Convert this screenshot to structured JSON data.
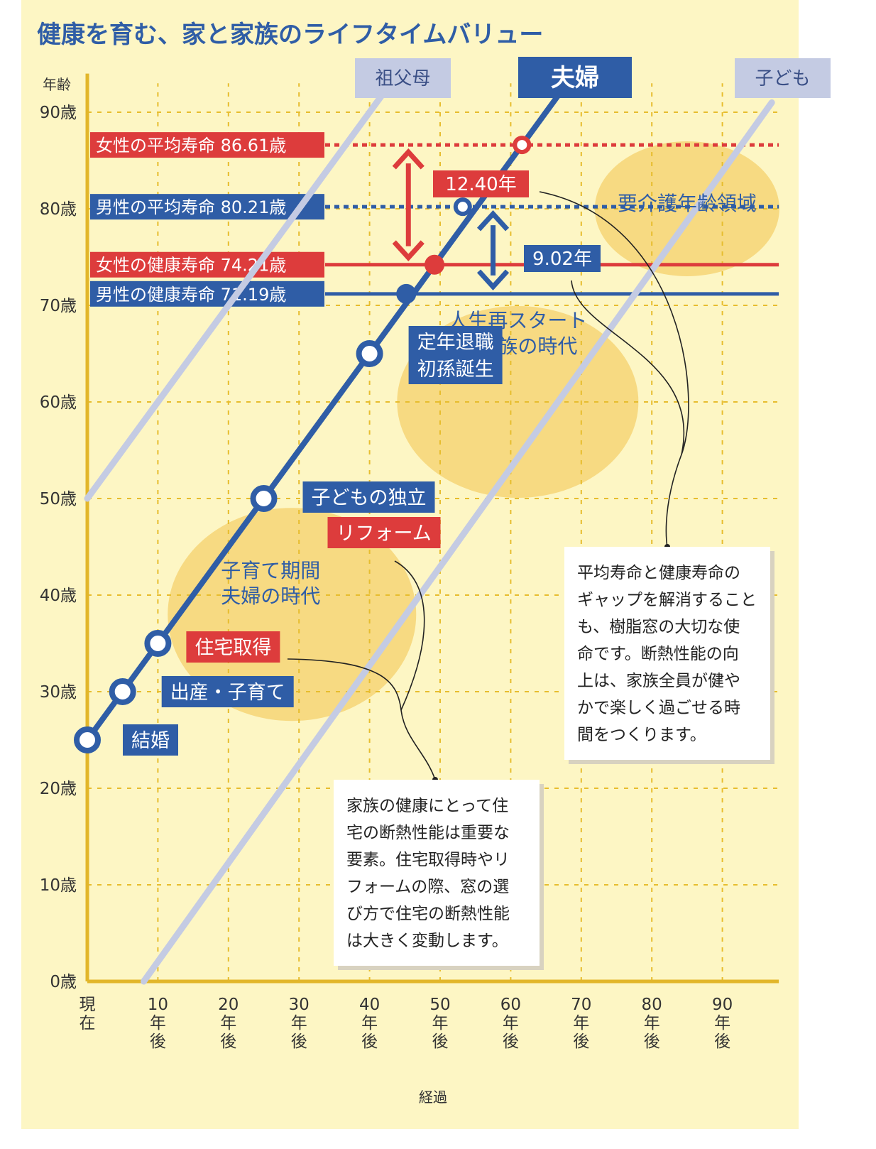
{
  "title": "健康を育む、家と家族のライフタイムバリュー",
  "colors": {
    "page_bg": "#fdf6c4",
    "axis": "#e2b62a",
    "grid": "#e7bd2e",
    "blue": "#2f5da6",
    "red": "#dd3c3c",
    "light_blue": "#c4cbe3",
    "bubble": "#f6d577",
    "title_blue": "#2f5da6"
  },
  "chart_data": {
    "type": "line",
    "xlabel": "経過",
    "ylabel": "年齢",
    "xlim": [
      0,
      98
    ],
    "ylim": [
      0,
      90
    ],
    "x_ticks": [
      {
        "value": 0,
        "label": "現\n在"
      },
      {
        "value": 10,
        "label": "10\n年\n後"
      },
      {
        "value": 20,
        "label": "20\n年\n後"
      },
      {
        "value": 30,
        "label": "30\n年\n後"
      },
      {
        "value": 40,
        "label": "40\n年\n後"
      },
      {
        "value": 50,
        "label": "50\n年\n後"
      },
      {
        "value": 60,
        "label": "60\n年\n後"
      },
      {
        "value": 70,
        "label": "70\n年\n後"
      },
      {
        "value": 80,
        "label": "80\n年\n後"
      },
      {
        "value": 90,
        "label": "90\n年\n後"
      }
    ],
    "y_ticks": [
      {
        "value": 0,
        "label": "0歳"
      },
      {
        "value": 10,
        "label": "10歳"
      },
      {
        "value": 20,
        "label": "20歳"
      },
      {
        "value": 30,
        "label": "30歳"
      },
      {
        "value": 40,
        "label": "40歳"
      },
      {
        "value": 50,
        "label": "50歳"
      },
      {
        "value": 60,
        "label": "60歳"
      },
      {
        "value": 70,
        "label": "70歳"
      },
      {
        "value": 80,
        "label": "80歳"
      },
      {
        "value": 90,
        "label": "90歳"
      }
    ],
    "grid": true,
    "series": [
      {
        "name": "祖父母",
        "x": [
          0,
          43
        ],
        "y": [
          50,
          93
        ],
        "style": "faded"
      },
      {
        "name": "夫婦",
        "x": [
          0,
          67
        ],
        "y": [
          25,
          92
        ],
        "style": "main"
      },
      {
        "name": "子ども",
        "x": [
          8,
          97
        ],
        "y": [
          0,
          91
        ],
        "style": "faded"
      }
    ],
    "milestones": [
      {
        "x": 0,
        "y": 25,
        "label": "結婚",
        "color": "blue"
      },
      {
        "x": 5,
        "y": 30,
        "label": "出産・子育て",
        "color": "blue"
      },
      {
        "x": 10,
        "y": 35,
        "label": "住宅取得",
        "color": "red"
      },
      {
        "x": 25,
        "y": 50,
        "label": "子どもの独立",
        "color": "blue"
      },
      {
        "x": 25,
        "y": 50,
        "label": "リフォーム",
        "color": "red"
      },
      {
        "x": 40,
        "y": 65,
        "label": "定年退職\n初孫誕生",
        "color": "blue"
      }
    ],
    "reference_lines": [
      {
        "label": "女性の平均寿命 86.61歳",
        "value": 86.61,
        "style": "dotted",
        "color": "red",
        "marker_x": 61.6
      },
      {
        "label": "男性の平均寿命 80.21歳",
        "value": 80.21,
        "style": "dotted",
        "color": "blue",
        "marker_x": 53.2
      },
      {
        "label": "女性の健康寿命 74.21歳",
        "value": 74.21,
        "style": "solid",
        "color": "red",
        "marker_x": 49.2
      },
      {
        "label": "男性の健康寿命 71.19歳",
        "value": 71.19,
        "style": "solid",
        "color": "blue",
        "marker_x": 45.2
      }
    ],
    "gaps": [
      {
        "label": "12.40年",
        "from": 74.21,
        "to": 86.61,
        "color": "red",
        "x": 45.5
      },
      {
        "label": "9.02年",
        "from": 71.19,
        "to": 80.21,
        "color": "blue",
        "x": 57.5
      }
    ],
    "regions": [
      {
        "label": "子育て期間\n夫婦の時代",
        "cx": 29,
        "cy": 38
      },
      {
        "label": "人生再スタート\n大家族の時代",
        "cx": 61,
        "cy": 60
      },
      {
        "label": "要介護年齢領域",
        "cx": 85,
        "cy": 80
      }
    ]
  },
  "header_labels": {
    "grandparents": "祖父母",
    "couple": "夫婦",
    "children": "子ども"
  },
  "notes": {
    "note1": [
      "家族の健康にとって住",
      "宅の断熱性能は重要な",
      "要素。住宅取得時やリ",
      "フォームの際、窓の選",
      "び方で住宅の断熱性能",
      "は大きく変動します。"
    ],
    "note2": [
      "平均寿命と健康寿命の",
      "ギャップを解消すること",
      "も、樹脂窓の大切な使",
      "命です。断熱性能の向",
      "上は、家族全員が健や",
      "かで楽しく過ごせる時",
      "間をつくります。"
    ]
  }
}
